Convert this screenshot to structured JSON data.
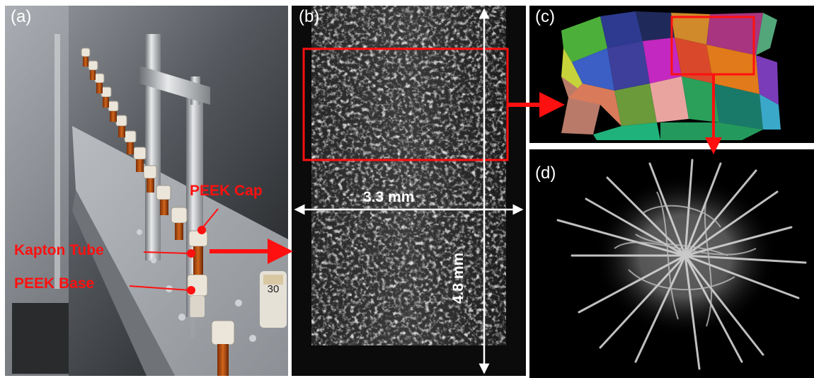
{
  "panels": {
    "a": {
      "label": "(a)"
    },
    "b": {
      "label": "(b)"
    },
    "c": {
      "label": "(c)"
    },
    "d": {
      "label": "(d)"
    }
  },
  "annotations": {
    "peek_cap": "PEEK Cap",
    "kapton_tube": "Kapton Tube",
    "peek_base": "PEEK Base",
    "sample_tag": "30",
    "width": "3.3 mm",
    "height": "4.8 mm"
  },
  "colors": {
    "annotation_red": "#ff1010",
    "dimension_white": "#ffffff"
  }
}
